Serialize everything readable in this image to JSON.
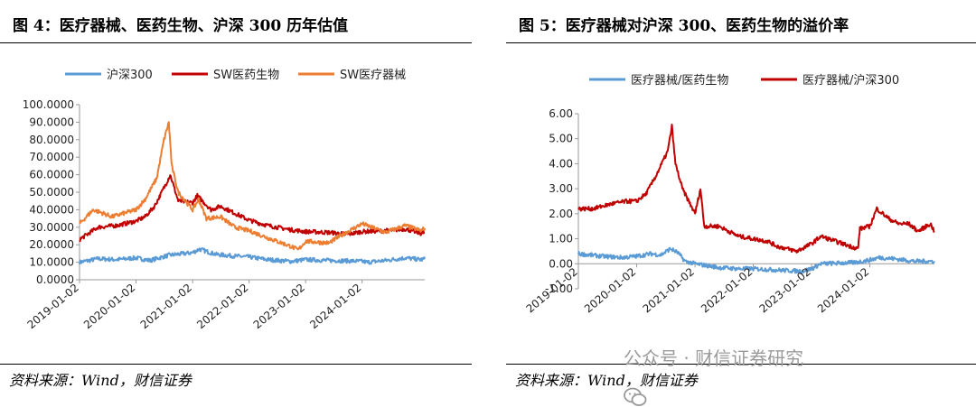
{
  "left": {
    "title": "图 4：医疗器械、医药生物、沪深 300 历年估值",
    "source": "资料来源：Wind，财信证券"
  },
  "right": {
    "title": "图 5：医疗器械对沪深 300、医药生物的溢价率",
    "source": "资料来源：Wind，财信证券"
  },
  "watermark": {
    "text": "公众号 · 财信证券研究",
    "icon": "wechat-icon"
  },
  "chart_data": [
    {
      "type": "line",
      "x_ticks": [
        "2019-01-02",
        "2020-01-02",
        "2021-01-02",
        "2022-01-02",
        "2023-01-02",
        "2024-01-02"
      ],
      "yticks": [
        "0.0000",
        "10.0000",
        "20.0000",
        "30.0000",
        "40.0000",
        "50.0000",
        "60.0000",
        "70.0000",
        "80.0000",
        "90.0000",
        "100.0000"
      ],
      "ylim": [
        0,
        100
      ],
      "xlim": [
        "2019-01-02",
        "2025-02-10"
      ],
      "legend_position": "top",
      "grid": false,
      "series": [
        {
          "name": "沪深300",
          "color": "#5b9bd5",
          "x": [
            "2019-01-02",
            "2019-05-01",
            "2019-09-01",
            "2020-01-02",
            "2020-04-01",
            "2020-08-01",
            "2021-01-02",
            "2021-02-15",
            "2021-06-01",
            "2021-10-01",
            "2022-01-02",
            "2022-05-01",
            "2022-10-01",
            "2023-01-02",
            "2023-06-01",
            "2023-10-01",
            "2024-01-02",
            "2024-02-05",
            "2024-06-01",
            "2024-10-08",
            "2025-01-15",
            "2025-02-10"
          ],
          "y": [
            10.0,
            12.0,
            11.5,
            12.5,
            11.0,
            14.0,
            15.5,
            17.5,
            14.5,
            13.5,
            13.0,
            11.5,
            10.5,
            11.5,
            11.0,
            10.8,
            10.5,
            10.0,
            11.0,
            12.5,
            11.5,
            11.8
          ]
        },
        {
          "name": "SW医药生物",
          "color": "#c00000",
          "x": [
            "2019-01-02",
            "2019-05-01",
            "2019-09-01",
            "2020-01-02",
            "2020-03-01",
            "2020-05-01",
            "2020-07-15",
            "2020-08-10",
            "2020-10-01",
            "2021-01-02",
            "2021-02-01",
            "2021-05-01",
            "2021-07-01",
            "2021-10-01",
            "2022-01-02",
            "2022-05-01",
            "2022-10-01",
            "2023-01-02",
            "2023-06-01",
            "2023-10-01",
            "2024-01-02",
            "2024-06-01",
            "2024-10-08",
            "2025-01-15",
            "2025-02-10"
          ],
          "y": [
            23.0,
            30.0,
            31.0,
            33.5,
            36.0,
            42.0,
            55.0,
            60.0,
            45.0,
            44.0,
            48.0,
            40.0,
            42.0,
            38.0,
            34.0,
            31.0,
            28.5,
            27.5,
            27.0,
            26.0,
            27.5,
            28.0,
            29.0,
            26.5,
            27.0
          ]
        },
        {
          "name": "SW医疗器械",
          "color": "#ed7d31",
          "x": [
            "2019-01-02",
            "2019-04-01",
            "2019-08-01",
            "2020-01-02",
            "2020-03-01",
            "2020-05-15",
            "2020-07-01",
            "2020-08-01",
            "2020-08-20",
            "2020-10-01",
            "2021-01-02",
            "2021-02-10",
            "2021-04-01",
            "2021-07-01",
            "2021-10-01",
            "2022-01-02",
            "2022-05-01",
            "2022-10-01",
            "2022-11-15",
            "2023-01-02",
            "2023-06-01",
            "2023-09-01",
            "2024-01-02",
            "2024-06-01",
            "2024-10-08",
            "2025-01-15",
            "2025-02-10"
          ],
          "y": [
            32.0,
            40.0,
            36.0,
            40.0,
            46.0,
            58.0,
            80.0,
            90.0,
            65.0,
            50.0,
            40.0,
            46.0,
            35.0,
            36.0,
            30.0,
            28.0,
            24.0,
            19.0,
            17.0,
            22.0,
            21.0,
            26.0,
            32.0,
            27.0,
            31.0,
            28.0,
            29.5
          ]
        }
      ]
    },
    {
      "type": "line",
      "x_ticks": [
        "2019-01-02",
        "2020-01-02",
        "2021-01-02",
        "2022-01-02",
        "2023-01-02",
        "2024-01-02"
      ],
      "yticks": [
        "-1.00",
        "0.00",
        "1.00",
        "2.00",
        "3.00",
        "4.00",
        "5.00",
        "6.00"
      ],
      "ylim": [
        -1,
        6
      ],
      "xlim": [
        "2019-01-02",
        "2025-02-10"
      ],
      "legend_position": "top",
      "grid": false,
      "series": [
        {
          "name": "医疗器械/医药生物",
          "color": "#5b9bd5",
          "x": [
            "2019-01-02",
            "2019-06-01",
            "2019-10-01",
            "2020-01-02",
            "2020-04-01",
            "2020-06-01",
            "2020-08-01",
            "2020-09-15",
            "2020-11-01",
            "2021-01-02",
            "2021-06-01",
            "2021-10-01",
            "2022-01-02",
            "2022-06-01",
            "2022-11-01",
            "2023-01-02",
            "2023-03-01",
            "2023-10-01",
            "2024-01-02",
            "2024-03-01",
            "2024-06-01",
            "2024-10-08",
            "2025-02-10"
          ],
          "y": [
            0.4,
            0.3,
            0.25,
            0.3,
            0.4,
            0.35,
            0.6,
            0.45,
            0.1,
            0.0,
            -0.15,
            -0.2,
            -0.2,
            -0.25,
            -0.3,
            -0.2,
            0.0,
            0.05,
            0.15,
            0.25,
            0.2,
            0.1,
            0.1
          ]
        },
        {
          "name": "医疗器械/沪深300",
          "color": "#c00000",
          "x": [
            "2019-01-02",
            "2019-04-01",
            "2019-08-01",
            "2019-11-01",
            "2020-01-02",
            "2020-03-01",
            "2020-05-01",
            "2020-07-15",
            "2020-08-10",
            "2020-09-01",
            "2020-10-15",
            "2021-01-02",
            "2021-02-05",
            "2021-03-01",
            "2021-06-01",
            "2021-10-01",
            "2022-01-02",
            "2022-04-01",
            "2022-06-01",
            "2022-10-01",
            "2022-11-01",
            "2023-01-02",
            "2023-03-01",
            "2023-06-01",
            "2023-09-01",
            "2023-10-20",
            "2023-11-01",
            "2024-01-02",
            "2024-02-15",
            "2024-05-01",
            "2024-07-01",
            "2024-09-01",
            "2024-11-01",
            "2025-01-15",
            "2025-02-10"
          ],
          "y": [
            2.2,
            2.2,
            2.4,
            2.5,
            2.5,
            2.8,
            3.5,
            4.5,
            5.5,
            4.0,
            3.0,
            2.0,
            3.0,
            1.5,
            1.5,
            1.1,
            1.0,
            0.9,
            0.7,
            0.5,
            0.6,
            0.8,
            1.1,
            0.9,
            0.7,
            0.6,
            1.4,
            1.5,
            2.2,
            1.8,
            1.6,
            1.6,
            1.3,
            1.6,
            1.3
          ]
        }
      ]
    }
  ]
}
